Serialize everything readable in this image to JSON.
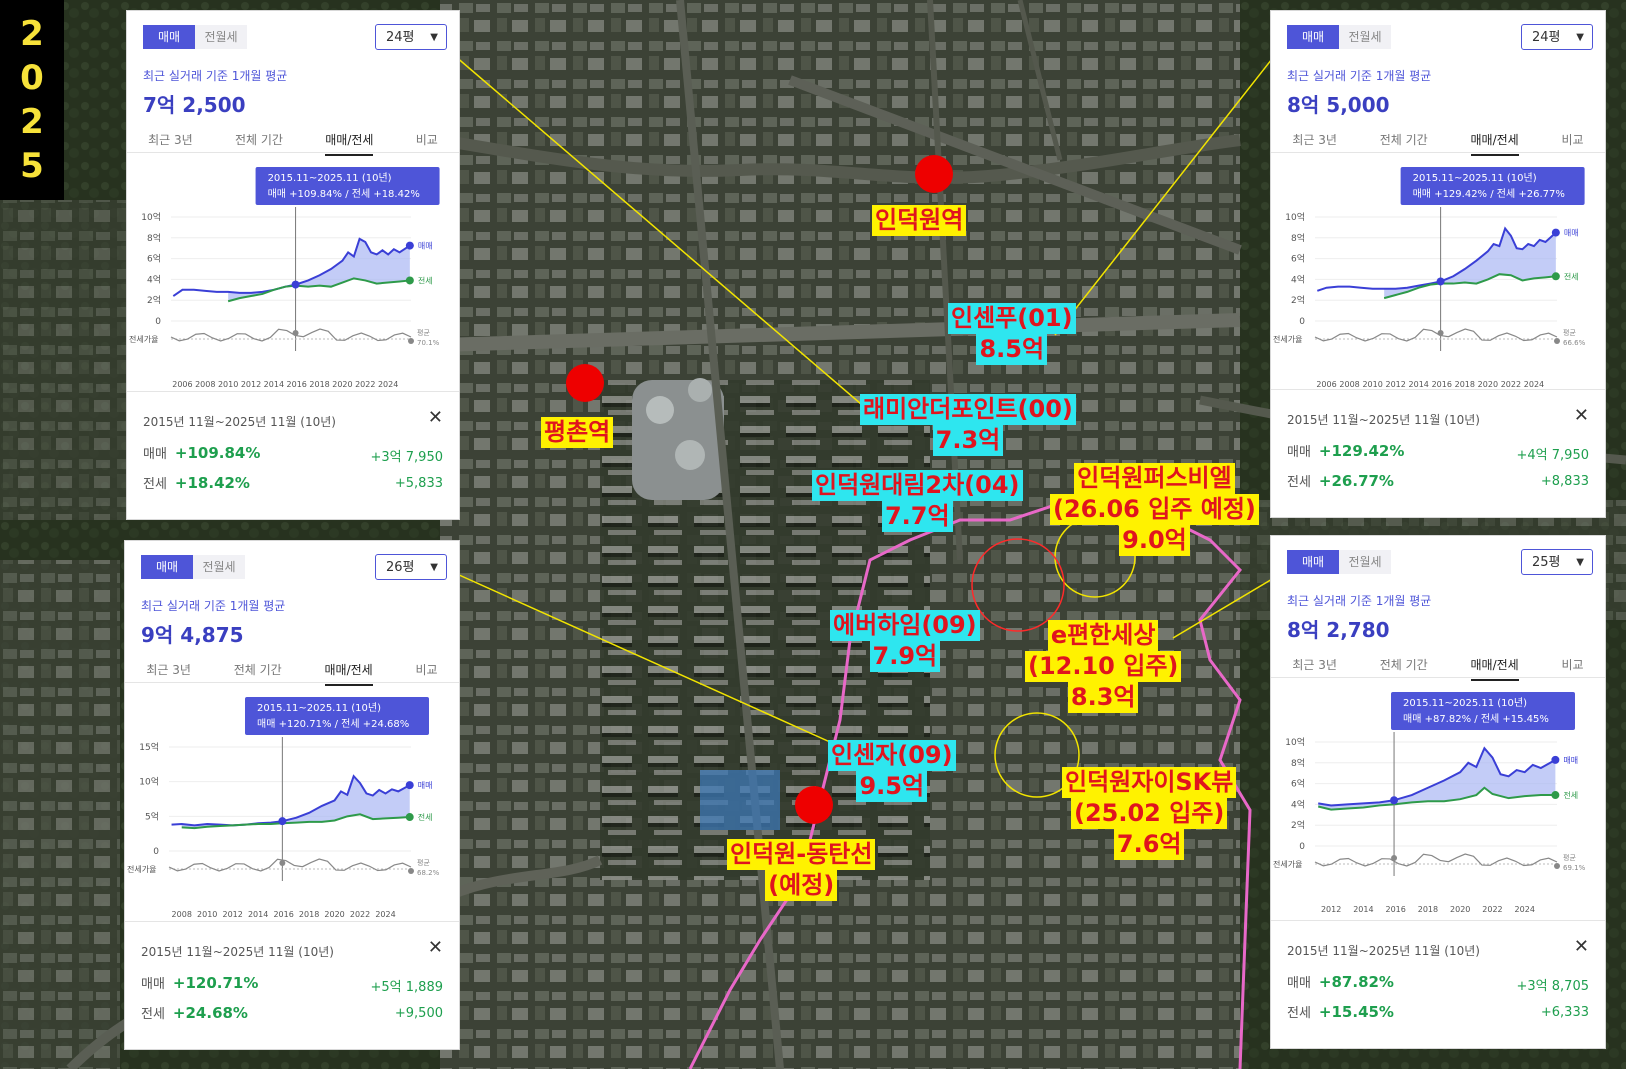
{
  "year_badge": [
    "2",
    "0",
    "2",
    "5"
  ],
  "stations": [
    {
      "id": "indeogwon",
      "label": "인덕원역"
    },
    {
      "id": "pyeongchon",
      "label": "평촌역"
    },
    {
      "id": "dongtan",
      "label_lines": [
        "인덕원-동탄선",
        "(예정)"
      ]
    }
  ],
  "complexes": [
    {
      "id": "insenpu",
      "lines": [
        "인센푸(01)",
        "8.5억"
      ],
      "style": "cyan"
    },
    {
      "id": "raemian",
      "lines": [
        "래미안더포인트(00)",
        "7.3억"
      ],
      "style": "cyan"
    },
    {
      "id": "daelim",
      "lines": [
        "인덕원대림2차(04)",
        "7.7억"
      ],
      "style": "cyan"
    },
    {
      "id": "everhaim",
      "lines": [
        "에버하임(09)",
        "7.9억"
      ],
      "style": "cyan"
    },
    {
      "id": "insenja",
      "lines": [
        "인센자(09)",
        "9.5억"
      ],
      "style": "cyan"
    },
    {
      "id": "prugio",
      "lines": [
        "인덕원퍼스비엘",
        "(26.06 입주 예정)",
        "9.0억"
      ],
      "style": "yellow"
    },
    {
      "id": "epyeonhan",
      "lines": [
        "e편한세상",
        "(12.10 입주)",
        "8.3억"
      ],
      "style": "yellow"
    },
    {
      "id": "xi",
      "lines": [
        "인덕원자이SK뷰",
        "(25.02 입주)",
        "7.6억"
      ],
      "style": "yellow"
    }
  ],
  "common": {
    "tab_sale": "매매",
    "tab_rent": "전월세",
    "subtitle": "최근 실거래 기준 1개월 평균",
    "period_tabs": [
      "최근 3년",
      "전체 기간",
      "매매/전세",
      "비교"
    ],
    "legend_sale": "매매",
    "legend_jeonse": "전세",
    "ratio_label": "전세가율",
    "avg_label": "평균",
    "period_text": "2015년 11월~2025년 11월 (10년)",
    "row_sale": "매매",
    "row_jeonse": "전세",
    "close_icon": "close-icon"
  },
  "panels": [
    {
      "id": "tl",
      "size": "24평",
      "price": "7억 2,500",
      "tooltip_period": "2015.11~2025.11 (10년)",
      "tooltip_text": "매매 +109.84%  /  전세 +18.42%",
      "sale_pct": "+109.84%",
      "sale_diff": "+3억 7,950",
      "jeonse_pct": "+18.42%",
      "jeonse_diff": "+5,833",
      "avg_ratio": "70.1%",
      "chart_data": {
        "type": "line",
        "x_ticks": [
          "2006",
          "2008",
          "2010",
          "2012",
          "2014",
          "2016",
          "2018",
          "2020",
          "2022",
          "2024"
        ],
        "y_ticks": [
          "10억",
          "8억",
          "6억",
          "4억",
          "2억",
          "0"
        ],
        "ylim": [
          0,
          10
        ],
        "xlim": [
          2005,
          2026
        ],
        "marker_x": 2015.9,
        "series": [
          {
            "name": "매매",
            "x": [
              2005.2,
              2006,
              2007,
              2008,
              2009,
              2010,
              2011,
              2012,
              2013,
              2014,
              2015,
              2015.9,
              2017,
              2018,
              2019,
              2020,
              2020.5,
              2021,
              2021.5,
              2022,
              2022.5,
              2023,
              2023.5,
              2024,
              2024.5,
              2025,
              2025.9
            ],
            "values": [
              2.4,
              3.0,
              3.0,
              2.9,
              2.8,
              2.8,
              2.7,
              2.7,
              2.8,
              3.0,
              3.3,
              3.5,
              3.9,
              4.4,
              5.0,
              5.8,
              6.6,
              6.2,
              7.9,
              7.6,
              6.6,
              6.4,
              6.8,
              6.4,
              6.9,
              6.6,
              7.25
            ]
          },
          {
            "name": "전세",
            "x": [
              2010,
              2011,
              2012,
              2013,
              2014,
              2015,
              2015.9,
              2017,
              2018,
              2019,
              2020,
              2021,
              2022,
              2023,
              2024,
              2025,
              2025.9
            ],
            "values": [
              1.9,
              2.2,
              2.4,
              2.6,
              3.0,
              3.3,
              3.4,
              3.3,
              3.4,
              3.3,
              3.7,
              4.1,
              3.9,
              3.6,
              3.7,
              3.8,
              3.9
            ]
          }
        ]
      }
    },
    {
      "id": "tr",
      "size": "24평",
      "price": "8억 5,000",
      "tooltip_period": "2015.11~2025.11 (10년)",
      "tooltip_text": "매매 +129.42%  /  전세 +26.77%",
      "sale_pct": "+129.42%",
      "sale_diff": "+4억 7,950",
      "jeonse_pct": "+26.77%",
      "jeonse_diff": "+8,833",
      "avg_ratio": "66.6%",
      "chart_data": {
        "type": "line",
        "x_ticks": [
          "2006",
          "2008",
          "2010",
          "2012",
          "2014",
          "2016",
          "2018",
          "2020",
          "2022",
          "2024"
        ],
        "y_ticks": [
          "10억",
          "8억",
          "6억",
          "4억",
          "2억",
          "0"
        ],
        "ylim": [
          0,
          10
        ],
        "xlim": [
          2005,
          2026
        ],
        "marker_x": 2015.9,
        "series": [
          {
            "name": "매매",
            "x": [
              2005.2,
              2006,
              2007,
              2008,
              2009,
              2010,
              2011,
              2012,
              2013,
              2014,
              2015,
              2015.9,
              2017,
              2018,
              2019,
              2020,
              2020.5,
              2021,
              2021.5,
              2022,
              2022.5,
              2023,
              2023.5,
              2024,
              2024.5,
              2025,
              2025.9
            ],
            "values": [
              2.9,
              3.2,
              3.3,
              3.3,
              3.2,
              3.1,
              3.1,
              3.1,
              3.2,
              3.4,
              3.6,
              3.8,
              4.3,
              5.0,
              5.8,
              6.7,
              7.4,
              7.2,
              8.9,
              8.2,
              7.0,
              6.9,
              7.4,
              7.2,
              7.8,
              7.6,
              8.5
            ]
          },
          {
            "name": "전세",
            "x": [
              2011,
              2012,
              2013,
              2014,
              2015,
              2015.9,
              2017,
              2018,
              2019,
              2020,
              2021,
              2022,
              2023,
              2024,
              2025,
              2025.9
            ],
            "values": [
              2.2,
              2.5,
              2.8,
              3.2,
              3.5,
              3.6,
              3.6,
              3.7,
              3.6,
              4.0,
              4.5,
              4.4,
              3.9,
              4.1,
              4.2,
              4.3
            ]
          }
        ]
      }
    },
    {
      "id": "bl",
      "size": "26평",
      "price": "9억 4,875",
      "tooltip_period": "2015.11~2025.11 (10년)",
      "tooltip_text": "매매 +120.71%  /  전세 +24.68%",
      "sale_pct": "+120.71%",
      "sale_diff": "+5억 1,889",
      "jeonse_pct": "+24.68%",
      "jeonse_diff": "+9,500",
      "avg_ratio": "68.2%",
      "chart_data": {
        "type": "line",
        "x_ticks": [
          "2008",
          "2010",
          "2012",
          "2014",
          "2016",
          "2018",
          "2020",
          "2022",
          "2024"
        ],
        "y_ticks": [
          "15억",
          "10억",
          "5억",
          "0"
        ],
        "ylim": [
          0,
          15
        ],
        "xlim": [
          2007,
          2026
        ],
        "marker_x": 2015.9,
        "series": [
          {
            "name": "매매",
            "x": [
              2007.2,
              2008,
              2009,
              2010,
              2011,
              2012,
              2013,
              2014,
              2015,
              2015.9,
              2017,
              2018,
              2019,
              2020,
              2020.5,
              2021,
              2021.5,
              2022,
              2022.5,
              2023,
              2023.5,
              2024,
              2024.5,
              2025,
              2025.9
            ],
            "values": [
              3.8,
              3.9,
              3.7,
              3.9,
              3.8,
              3.7,
              3.8,
              4.0,
              4.1,
              4.3,
              4.8,
              5.5,
              6.5,
              7.3,
              8.6,
              8.1,
              10.8,
              9.8,
              8.3,
              8.0,
              8.8,
              8.3,
              8.9,
              8.6,
              9.5
            ]
          },
          {
            "name": "전세",
            "x": [
              2008,
              2009,
              2010,
              2011,
              2012,
              2013,
              2014,
              2015,
              2015.9,
              2017,
              2018,
              2019,
              2020,
              2021,
              2022,
              2023,
              2024,
              2025,
              2025.9
            ],
            "values": [
              3.4,
              3.3,
              3.5,
              3.6,
              3.7,
              3.8,
              3.9,
              3.9,
              4.0,
              4.1,
              4.2,
              4.2,
              4.4,
              5.0,
              5.3,
              4.6,
              4.7,
              4.8,
              4.9
            ]
          }
        ]
      }
    },
    {
      "id": "br",
      "size": "25평",
      "price": "8억 2,780",
      "tooltip_period": "2015.11~2025.11 (10년)",
      "tooltip_text": "매매 +87.82%  /  전세 +15.45%",
      "sale_pct": "+87.82%",
      "sale_diff": "+3억 8,705",
      "jeonse_pct": "+15.45%",
      "jeonse_diff": "+6,333",
      "avg_ratio": "69.1%",
      "chart_data": {
        "type": "line",
        "x_ticks": [
          "2012",
          "2014",
          "2016",
          "2018",
          "2020",
          "2022",
          "2024"
        ],
        "y_ticks": [
          "10억",
          "8억",
          "6억",
          "4억",
          "2억",
          "0"
        ],
        "ylim": [
          0,
          10
        ],
        "xlim": [
          2011,
          2026
        ],
        "marker_x": 2015.9,
        "series": [
          {
            "name": "매매",
            "x": [
              2011.2,
              2012,
              2013,
              2014,
              2015,
              2015.9,
              2017,
              2018,
              2019,
              2020,
              2020.5,
              2021,
              2021.5,
              2022,
              2022.5,
              2023,
              2023.5,
              2024,
              2024.5,
              2025,
              2025.9
            ],
            "values": [
              4.1,
              3.9,
              4.0,
              4.1,
              4.2,
              4.4,
              4.9,
              5.6,
              6.3,
              7.1,
              8.0,
              7.6,
              9.4,
              8.5,
              6.9,
              6.7,
              7.3,
              7.1,
              7.8,
              7.5,
              8.28
            ]
          },
          {
            "name": "전세",
            "x": [
              2011.2,
              2012,
              2013,
              2014,
              2015,
              2015.9,
              2017,
              2018,
              2019,
              2020,
              2021,
              2021.5,
              2022,
              2023,
              2024,
              2025,
              2025.9
            ],
            "values": [
              3.8,
              3.5,
              3.6,
              3.7,
              3.9,
              4.0,
              4.2,
              4.3,
              4.3,
              4.5,
              4.9,
              5.6,
              5.0,
              4.6,
              4.8,
              4.9,
              4.9
            ]
          }
        ]
      }
    }
  ]
}
